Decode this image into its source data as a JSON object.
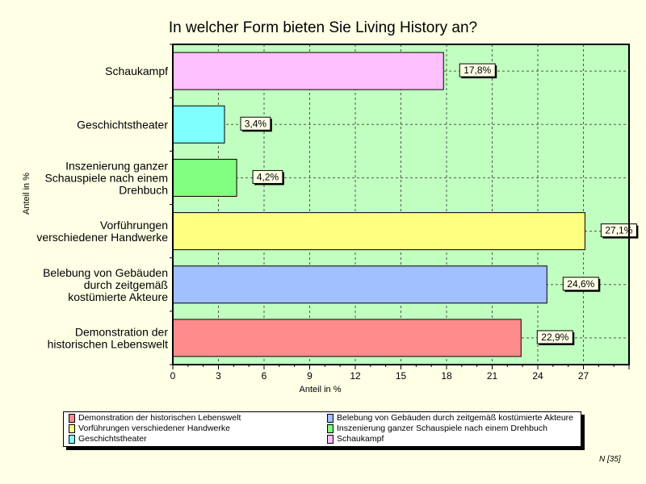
{
  "chart_data": {
    "type": "bar",
    "orientation": "horizontal",
    "title": "In welcher Form bieten Sie Living History an?",
    "xlabel": "Anteil in %",
    "ylabel": "Anteil in %",
    "xlim": [
      0,
      30
    ],
    "xticks": [
      0,
      3,
      6,
      9,
      12,
      15,
      18,
      21,
      24,
      27
    ],
    "grid": true,
    "categories": [
      "Schaukampf",
      "Geschichtstheater",
      "Inszenierung ganzer Schauspiele nach einem Drehbuch",
      "Vorführungen verschiedener Handwerke",
      "Belebung von Gebäuden durch zeitgemäß kostümierte Akteure",
      "Demonstration der historischen Lebenswelt"
    ],
    "category_lines": [
      [
        "Schaukampf"
      ],
      [
        "Geschichtstheater"
      ],
      [
        "Inszenierung ganzer",
        "Schauspiele nach einem",
        "Drehbuch"
      ],
      [
        "Vorführungen",
        "verschiedener Handwerke"
      ],
      [
        "Belebung von Gebäuden",
        "durch zeitgemäß",
        "kostümierte Akteure"
      ],
      [
        "Demonstration der",
        "historischen Lebenswelt"
      ]
    ],
    "values": [
      17.8,
      3.4,
      4.2,
      27.1,
      24.6,
      22.9
    ],
    "data_labels": [
      "17,8%",
      "3,4%",
      "4,2%",
      "27,1%",
      "24,6%",
      "22,9%"
    ],
    "colors": [
      "#FFC0FF",
      "#80FFFF",
      "#80FF80",
      "#FFFF80",
      "#A0C0FF",
      "#FF8C8C"
    ],
    "plot_background": "#C0FFC0",
    "legend_placement": "bottom",
    "legend": [
      {
        "label": "Demonstration der historischen Lebenswelt",
        "color": "#FF8C8C"
      },
      {
        "label": "Belebung von Gebäuden durch zeitgemäß kostümierte Akteure",
        "color": "#A0C0FF"
      },
      {
        "label": "Vorführungen verschiedener Handwerke",
        "color": "#FFFF80"
      },
      {
        "label": "Inszenierung ganzer Schauspiele nach einem Drehbuch",
        "color": "#80FF80"
      },
      {
        "label": "Geschichtstheater",
        "color": "#80FFFF"
      },
      {
        "label": "Schaukampf",
        "color": "#FFC0FF"
      }
    ],
    "note": "N [35]"
  }
}
